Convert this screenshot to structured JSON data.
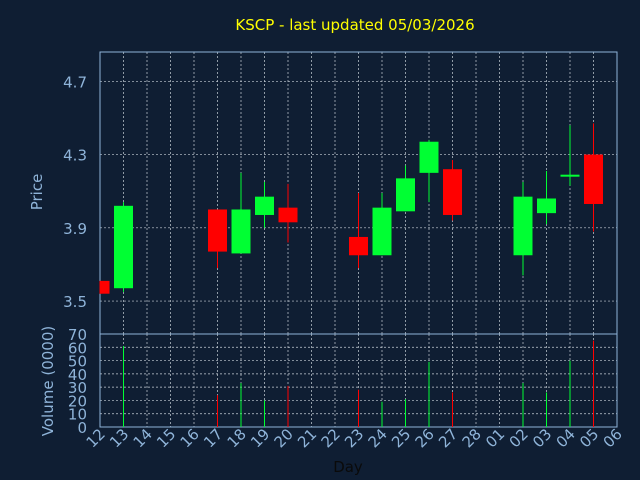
{
  "chart_data": {
    "type": "candlestick",
    "title": "KSCP - last updated 05/03/2026",
    "xlabel": "Day",
    "x_ticks": [
      "12",
      "13",
      "14",
      "15",
      "16",
      "17",
      "18",
      "19",
      "20",
      "21",
      "22",
      "23",
      "24",
      "25",
      "26",
      "27",
      "28",
      "01",
      "02",
      "03",
      "04",
      "05",
      "06"
    ],
    "price_panel": {
      "ylabel": "Price",
      "ylim": [
        3.32,
        4.86
      ],
      "y_ticks": [
        3.5,
        3.9,
        4.3,
        4.7
      ],
      "grid": true
    },
    "volume_panel": {
      "ylabel": "Volume (0000)",
      "ylim": [
        0,
        70
      ],
      "y_ticks": [
        0,
        10,
        20,
        30,
        40,
        50,
        60,
        70
      ],
      "grid": true
    },
    "colors": {
      "up": "#00ff33",
      "down": "#ff0000",
      "background": "#0f1e33",
      "grid": "#c8d0d8",
      "title": "#ffff00",
      "axis_text": "#8fb4d9",
      "axis_line": "#8fb4d9"
    },
    "candles": [
      {
        "day": "12",
        "open": 3.61,
        "high": 3.61,
        "low": 3.54,
        "close": 3.54,
        "volume": 0
      },
      {
        "day": "13",
        "open": 3.57,
        "high": 4.04,
        "low": 3.55,
        "close": 4.02,
        "volume": 61
      },
      {
        "day": "17",
        "open": 4.0,
        "high": 4.0,
        "low": 3.68,
        "close": 3.77,
        "volume": 24
      },
      {
        "day": "18",
        "open": 3.76,
        "high": 4.2,
        "low": 3.76,
        "close": 4.0,
        "volume": 33
      },
      {
        "day": "19",
        "open": 3.97,
        "high": 4.15,
        "low": 3.9,
        "close": 4.07,
        "volume": 20
      },
      {
        "day": "20",
        "open": 4.01,
        "high": 4.14,
        "low": 3.82,
        "close": 3.93,
        "volume": 31
      },
      {
        "day": "23",
        "open": 3.85,
        "high": 4.09,
        "low": 3.68,
        "close": 3.75,
        "volume": 28
      },
      {
        "day": "24",
        "open": 3.75,
        "high": 4.09,
        "low": 3.75,
        "close": 4.01,
        "volume": 19
      },
      {
        "day": "25",
        "open": 3.99,
        "high": 4.24,
        "low": 3.99,
        "close": 4.17,
        "volume": 21
      },
      {
        "day": "26",
        "open": 4.2,
        "high": 4.38,
        "low": 4.04,
        "close": 4.37,
        "volume": 49
      },
      {
        "day": "27",
        "open": 4.22,
        "high": 4.27,
        "low": 3.94,
        "close": 3.97,
        "volume": 26
      },
      {
        "day": "02",
        "open": 3.75,
        "high": 4.15,
        "low": 3.64,
        "close": 4.07,
        "volume": 33
      },
      {
        "day": "03",
        "open": 3.98,
        "high": 4.21,
        "low": 3.92,
        "close": 4.06,
        "volume": 26
      },
      {
        "day": "04",
        "open": 4.18,
        "high": 4.46,
        "low": 4.13,
        "close": 4.19,
        "volume": 50
      },
      {
        "day": "05",
        "open": 4.3,
        "high": 4.47,
        "low": 3.88,
        "close": 4.03,
        "volume": 65
      }
    ]
  }
}
